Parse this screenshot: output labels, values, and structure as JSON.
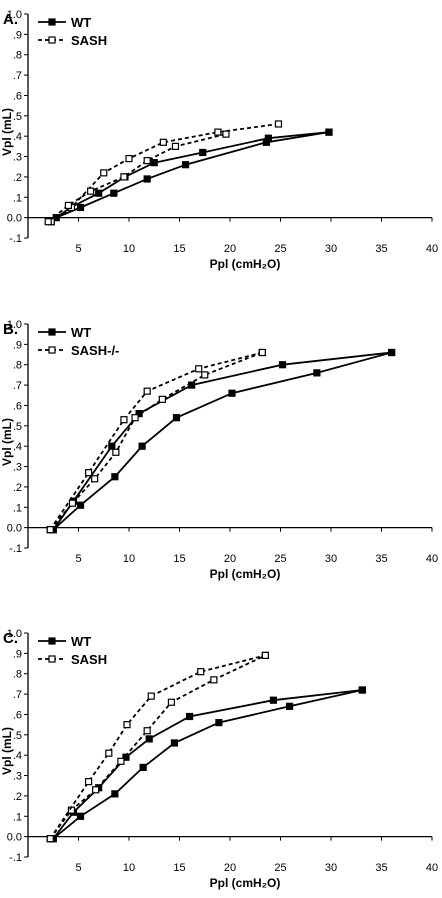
{
  "chart_data": [
    {
      "type": "line",
      "panel_label": "A.",
      "xlabel": "Ppl (cmH₂O)",
      "ylabel": "Vpl (mL)",
      "xlim": [
        0,
        40
      ],
      "ylim": [
        -0.1,
        1.0
      ],
      "xticks": [
        5,
        10,
        15,
        20,
        25,
        30,
        35,
        40
      ],
      "yticks": [
        -0.1,
        0.0,
        0.1,
        0.2,
        0.3,
        0.4,
        0.5,
        0.6,
        0.7,
        0.8,
        0.9,
        1.0
      ],
      "legend": "top-left",
      "series": [
        {
          "name": "WT",
          "style": "solid",
          "marker": "filled",
          "curves": [
            [
              [
                2.8,
                0.0
              ],
              [
                5.2,
                0.05
              ],
              [
                8.5,
                0.12
              ],
              [
                11.8,
                0.19
              ],
              [
                15.6,
                0.26
              ],
              [
                23.6,
                0.37
              ],
              [
                29.8,
                0.42
              ]
            ],
            [
              [
                2.3,
                -0.02
              ],
              [
                4.2,
                0.05
              ],
              [
                7.0,
                0.12
              ],
              [
                9.6,
                0.2
              ],
              [
                12.5,
                0.27
              ],
              [
                17.3,
                0.32
              ],
              [
                23.8,
                0.39
              ],
              [
                29.8,
                0.42
              ]
            ]
          ]
        },
        {
          "name": "SASH",
          "style": "dashed",
          "marker": "open",
          "curves": [
            [
              [
                2.3,
                -0.02
              ],
              [
                4.3,
                0.05
              ],
              [
                7.5,
                0.22
              ],
              [
                10.0,
                0.29
              ],
              [
                13.4,
                0.37
              ],
              [
                18.8,
                0.42
              ],
              [
                24.8,
                0.46
              ]
            ],
            [
              [
                2.0,
                -0.02
              ],
              [
                4.0,
                0.06
              ],
              [
                6.2,
                0.13
              ],
              [
                9.5,
                0.2
              ],
              [
                11.8,
                0.28
              ],
              [
                14.6,
                0.35
              ],
              [
                19.6,
                0.41
              ]
            ]
          ]
        }
      ]
    },
    {
      "type": "line",
      "panel_label": "B.",
      "xlabel": "Ppl (cmH₂O)",
      "ylabel": "Vpl (mL)",
      "xlim": [
        0,
        40
      ],
      "ylim": [
        -0.1,
        1.0
      ],
      "xticks": [
        5,
        10,
        15,
        20,
        25,
        30,
        35,
        40
      ],
      "yticks": [
        -0.1,
        0.0,
        0.1,
        0.2,
        0.3,
        0.4,
        0.5,
        0.6,
        0.7,
        0.8,
        0.9,
        1.0
      ],
      "legend": "top-left",
      "series": [
        {
          "name": "WT",
          "style": "solid",
          "marker": "filled",
          "curves": [
            [
              [
                2.5,
                -0.01
              ],
              [
                5.2,
                0.11
              ],
              [
                8.6,
                0.25
              ],
              [
                11.3,
                0.4
              ],
              [
                14.7,
                0.54
              ],
              [
                20.2,
                0.66
              ],
              [
                28.6,
                0.76
              ],
              [
                36.0,
                0.86
              ]
            ],
            [
              [
                2.5,
                -0.01
              ],
              [
                4.5,
                0.13
              ],
              [
                8.3,
                0.4
              ],
              [
                11.0,
                0.56
              ],
              [
                16.2,
                0.7
              ],
              [
                25.2,
                0.8
              ],
              [
                36.0,
                0.86
              ]
            ]
          ]
        },
        {
          "name": "SASH-/-",
          "style": "dashed",
          "marker": "open",
          "curves": [
            [
              [
                2.2,
                -0.01
              ],
              [
                4.4,
                0.12
              ],
              [
                6.6,
                0.24
              ],
              [
                8.7,
                0.37
              ],
              [
                10.6,
                0.54
              ],
              [
                13.3,
                0.63
              ],
              [
                17.5,
                0.75
              ],
              [
                23.2,
                0.86
              ]
            ],
            [
              [
                2.2,
                -0.01
              ],
              [
                6.0,
                0.27
              ],
              [
                9.5,
                0.53
              ],
              [
                11.8,
                0.67
              ],
              [
                16.9,
                0.78
              ],
              [
                23.2,
                0.86
              ]
            ]
          ]
        }
      ]
    },
    {
      "type": "line",
      "panel_label": "C.",
      "xlabel": "Ppl (cmH₂O)",
      "ylabel": "Vpl (mL)",
      "xlim": [
        0,
        40
      ],
      "ylim": [
        -0.1,
        1.0
      ],
      "xticks": [
        5,
        10,
        15,
        20,
        25,
        30,
        35,
        40
      ],
      "yticks": [
        -0.1,
        0.0,
        0.1,
        0.2,
        0.3,
        0.4,
        0.5,
        0.6,
        0.7,
        0.8,
        0.9,
        1.0
      ],
      "legend": "top-left",
      "series": [
        {
          "name": "WT",
          "style": "solid",
          "marker": "filled",
          "curves": [
            [
              [
                2.5,
                -0.01
              ],
              [
                5.2,
                0.1
              ],
              [
                8.6,
                0.21
              ],
              [
                11.4,
                0.34
              ],
              [
                14.5,
                0.46
              ],
              [
                18.9,
                0.56
              ],
              [
                25.9,
                0.64
              ],
              [
                33.1,
                0.72
              ]
            ],
            [
              [
                2.5,
                -0.01
              ],
              [
                4.5,
                0.12
              ],
              [
                7.0,
                0.24
              ],
              [
                9.7,
                0.39
              ],
              [
                12.0,
                0.48
              ],
              [
                16.0,
                0.59
              ],
              [
                24.3,
                0.67
              ],
              [
                33.1,
                0.72
              ]
            ]
          ]
        },
        {
          "name": "SASH",
          "style": "dashed",
          "marker": "open",
          "curves": [
            [
              [
                2.2,
                -0.01
              ],
              [
                4.3,
                0.13
              ],
              [
                6.7,
                0.23
              ],
              [
                9.2,
                0.37
              ],
              [
                11.8,
                0.52
              ],
              [
                14.2,
                0.66
              ],
              [
                18.4,
                0.77
              ],
              [
                23.5,
                0.89
              ]
            ],
            [
              [
                2.2,
                -0.01
              ],
              [
                6.0,
                0.27
              ],
              [
                8.0,
                0.41
              ],
              [
                9.8,
                0.55
              ],
              [
                12.2,
                0.69
              ],
              [
                17.1,
                0.81
              ],
              [
                23.5,
                0.89
              ]
            ]
          ]
        }
      ]
    }
  ]
}
